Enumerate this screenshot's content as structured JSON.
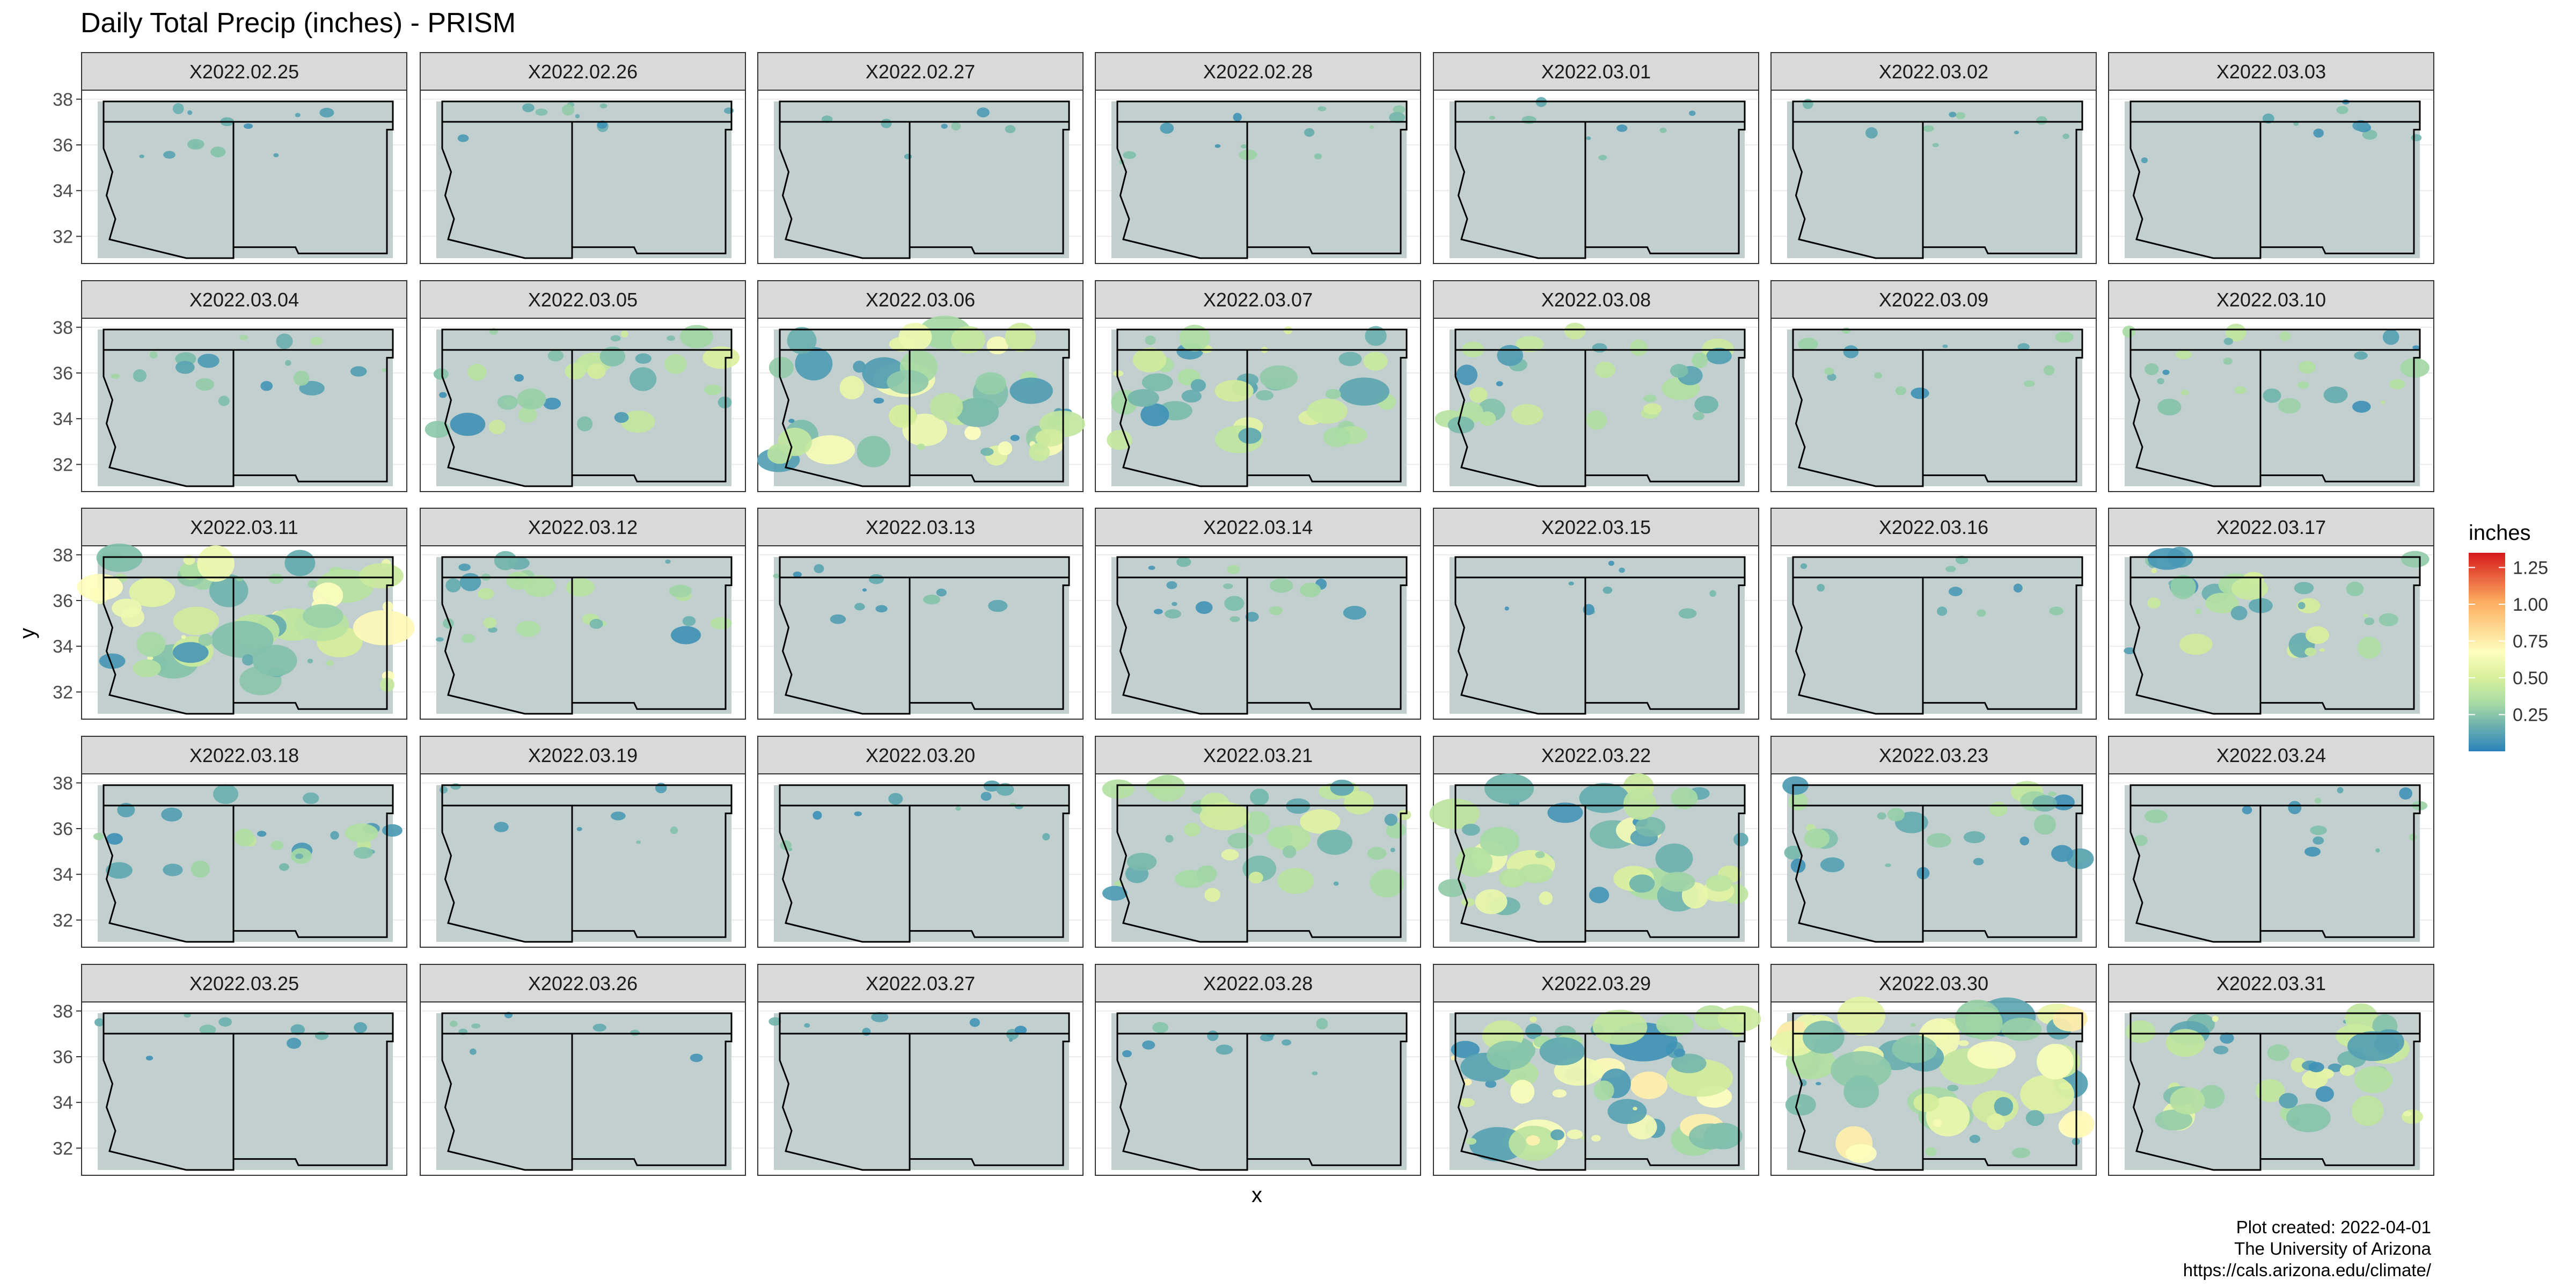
{
  "chart_data": {
    "type": "heatmap",
    "title": "Daily Total Precip (inches) - PRISM",
    "xlabel": "x",
    "ylabel": "y",
    "y_ticks": [
      "38",
      "36",
      "34",
      "32"
    ],
    "y_tick_values": [
      38,
      36,
      34,
      32
    ],
    "ylim": [
      31,
      38.3
    ],
    "legend": {
      "title": "inches",
      "position": "right",
      "ticks": [
        "1.25",
        "1.00",
        "0.75",
        "0.50",
        "0.25"
      ],
      "tick_values": [
        1.25,
        1.0,
        0.75,
        0.5,
        0.25
      ],
      "range": [
        0,
        1.35
      ],
      "colors": [
        "#2b83ba",
        "#6bb0af",
        "#abdda4",
        "#d8ef9b",
        "#ffffbf",
        "#fed790",
        "#fdae61",
        "#ea633e",
        "#d7191c"
      ]
    },
    "grid": true,
    "facet_layout": {
      "rows": 5,
      "cols": 7
    },
    "panels": [
      "X2022.02.25",
      "X2022.02.26",
      "X2022.02.27",
      "X2022.02.28",
      "X2022.03.01",
      "X2022.03.02",
      "X2022.03.03",
      "X2022.03.04",
      "X2022.03.05",
      "X2022.03.06",
      "X2022.03.07",
      "X2022.03.08",
      "X2022.03.09",
      "X2022.03.10",
      "X2022.03.11",
      "X2022.03.12",
      "X2022.03.13",
      "X2022.03.14",
      "X2022.03.15",
      "X2022.03.16",
      "X2022.03.17",
      "X2022.03.18",
      "X2022.03.19",
      "X2022.03.20",
      "X2022.03.21",
      "X2022.03.22",
      "X2022.03.23",
      "X2022.03.24",
      "X2022.03.25",
      "X2022.03.26",
      "X2022.03.27",
      "X2022.03.28",
      "X2022.03.29",
      "X2022.03.30",
      "X2022.03.31"
    ],
    "caption": [
      "Plot created: 2022-04-01",
      "The University of Arizona",
      "https://cals.arizona.edu/climate/"
    ],
    "background_color": "#c1cfcf"
  }
}
